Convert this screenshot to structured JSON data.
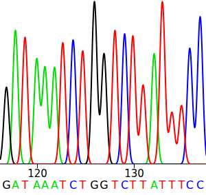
{
  "chart_data": {
    "type": "chromatogram",
    "x": [
      116.8,
      117.73,
      118.72,
      119.93,
      120.78,
      121.77,
      122.62,
      123.69,
      124.68,
      125.89,
      126.88,
      128.01,
      129.01,
      129.86,
      130.92,
      132.06,
      132.91,
      133.9,
      134.89,
      135.74,
      136.81
    ],
    "base_calls": [
      "G",
      "A",
      "T",
      "A",
      "A",
      "A",
      "T",
      "C",
      "T",
      "G",
      "G",
      "T",
      "C",
      "T",
      "T",
      "A",
      "T",
      "T",
      "T",
      "C",
      "C"
    ],
    "series": [
      {
        "name": "A",
        "color": "#00dd00",
        "values": [
          null,
          196,
          null,
          154,
          142,
          142,
          null,
          null,
          null,
          null,
          null,
          null,
          null,
          null,
          null,
          162,
          null,
          null,
          null,
          null,
          null
        ]
      },
      {
        "name": "C",
        "color": "#0000ff",
        "values": [
          null,
          null,
          null,
          null,
          null,
          null,
          null,
          182,
          null,
          null,
          null,
          null,
          191,
          null,
          null,
          null,
          null,
          null,
          null,
          170,
          216
        ]
      },
      {
        "name": "G",
        "color": "#000000",
        "values": [
          113,
          null,
          null,
          null,
          null,
          null,
          null,
          null,
          null,
          238,
          162,
          null,
          null,
          null,
          null,
          null,
          null,
          null,
          null,
          null,
          null
        ]
      },
      {
        "name": "T",
        "color": "#ff0000",
        "values": [
          null,
          null,
          186,
          null,
          null,
          null,
          178,
          null,
          166,
          null,
          null,
          196,
          null,
          188,
          116,
          null,
          238,
          76,
          86,
          null,
          null
        ]
      }
    ],
    "xlim": [
      116.17,
      137.45
    ],
    "xticks": [
      120,
      130
    ],
    "ylim": [
      0,
      240
    ],
    "tick_labels": "x"
  }
}
